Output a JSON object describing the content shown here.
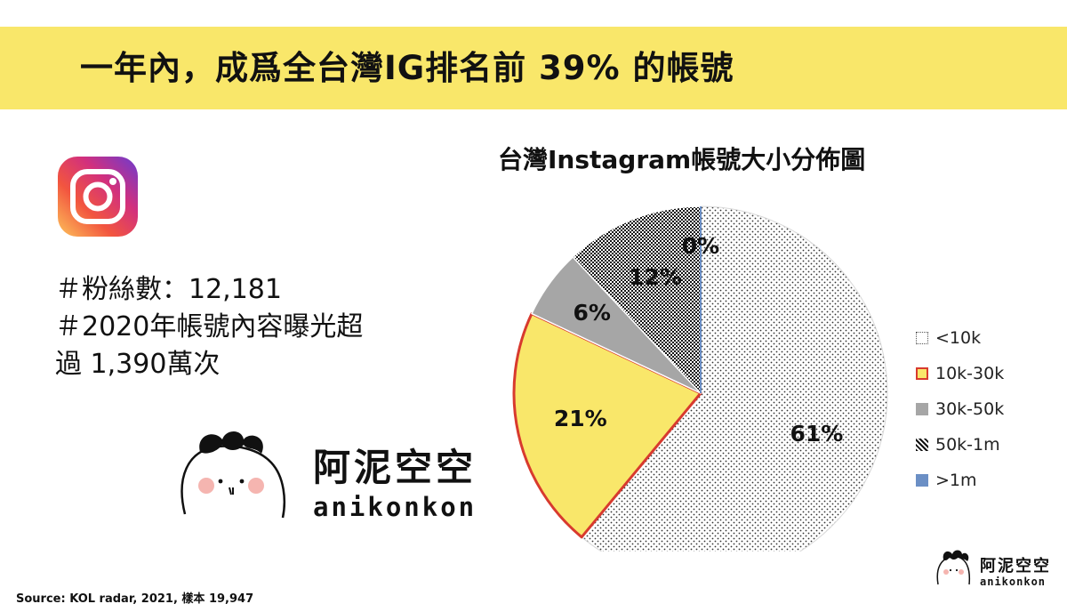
{
  "banner": {
    "title": "一年內，成爲全台灣IG排名前 39% 的帳號"
  },
  "stats": {
    "line1": "＃粉絲數：12,181",
    "line2": "＃2020年帳號內容曝光超",
    "line3": "過 1,390萬次"
  },
  "brand": {
    "name_cn": "阿泥空空",
    "name_en": "anikonkon"
  },
  "source": "Source: KOL radar, 2021, 樣本 19,947",
  "icons": {
    "instagram": "instagram-logo-icon",
    "mascot": "mascot-icon"
  },
  "colors": {
    "banner": "#f9e76a",
    "yellow_slice": "#f9e76a",
    "highlight_border": "#d83a2e",
    "gray_slice": "#a6a6a6",
    "blue_slice": "#6b8fc5"
  },
  "chart_data": {
    "type": "pie",
    "title": "台灣Instagram帳號大小分佈圖",
    "categories": [
      "<10k",
      "10k-30k",
      "30k-50k",
      "50k-1m",
      ">1m"
    ],
    "values": [
      61,
      21,
      6,
      12,
      0
    ],
    "data_labels": [
      "61%",
      "21%",
      "6%",
      "12%",
      "0%"
    ],
    "legend": "right",
    "highlighted": "10k-30k"
  }
}
